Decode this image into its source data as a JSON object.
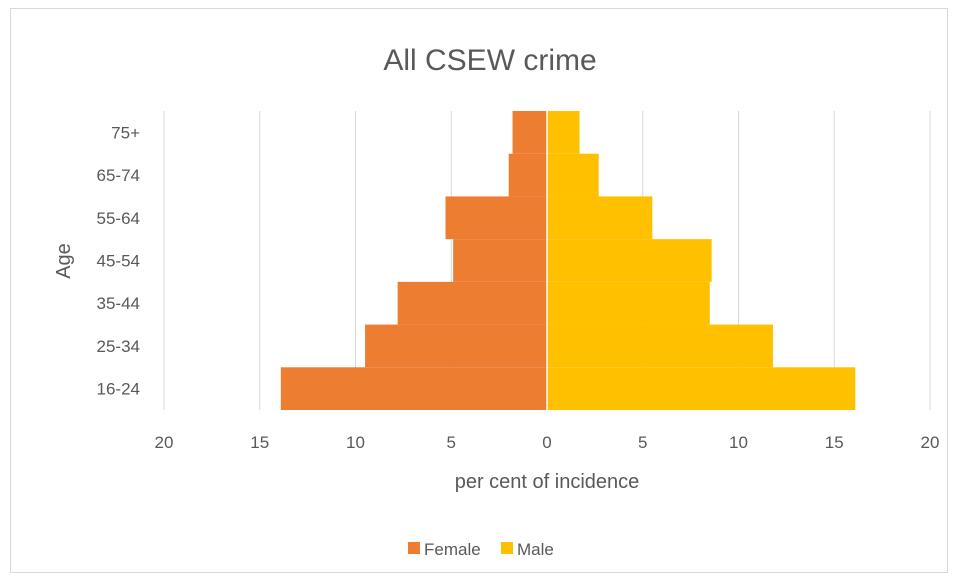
{
  "chart_data": {
    "type": "bar",
    "orientation": "horizontal",
    "title": "All CSEW crime",
    "xlabel": "per cent of incidence",
    "ylabel": "Age",
    "categories": [
      "16-24",
      "25-34",
      "35-44",
      "45-54",
      "55-64",
      "65-74",
      "75+"
    ],
    "series": [
      {
        "name": "Female",
        "color": "#ED7D31",
        "values": [
          13.9,
          9.5,
          7.8,
          4.9,
          5.3,
          2.0,
          1.8
        ]
      },
      {
        "name": "Male",
        "color": "#FFC000",
        "values": [
          16.1,
          11.8,
          8.5,
          8.6,
          5.5,
          2.7,
          1.7
        ]
      }
    ],
    "xlim": [
      -20,
      20
    ],
    "xticks": [
      -20,
      -15,
      -10,
      -5,
      0,
      5,
      10,
      15,
      20
    ],
    "xtick_labels": [
      "20",
      "15",
      "10",
      "5",
      "0",
      "5",
      "10",
      "15",
      "20"
    ],
    "grid": "vertical",
    "legend": "bottom"
  }
}
